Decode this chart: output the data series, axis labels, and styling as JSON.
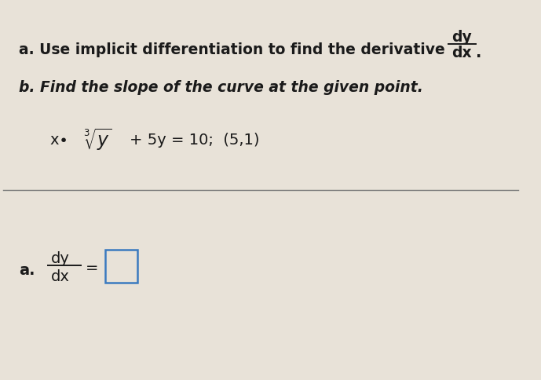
{
  "bg_color": "#e8e2d8",
  "text_color": "#1a1a1a",
  "line_a_bold": "a. Use implicit differentiation to find the derivative",
  "line_b_italic": "b. Find the slope of the curve at the given point.",
  "dy_top": "dy",
  "dy_bottom": "dx",
  "answer_label_a": "a.",
  "dy_label": "dy",
  "dx_label": "dx",
  "equals": "=",
  "box_color": "#3a7abf",
  "separator_line_color": "#777777",
  "figsize": [
    6.89,
    4.85
  ],
  "dpi": 100
}
